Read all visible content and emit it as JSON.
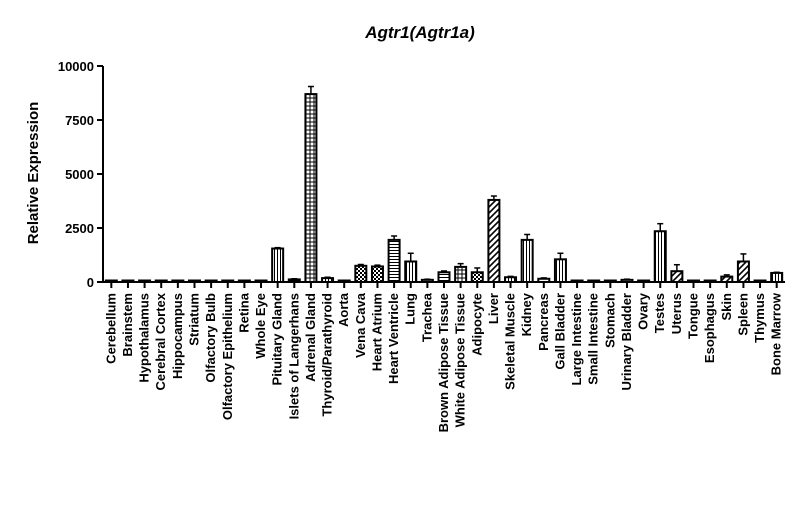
{
  "chart_data": {
    "type": "bar",
    "title": "Agtr1(Agtr1a)",
    "xlabel": "",
    "ylabel": "Relative Expression",
    "ylim": [
      0,
      10000
    ],
    "yticks": [
      0,
      2500,
      5000,
      7500,
      10000
    ],
    "ytick_labels": [
      "0",
      "2500",
      "5000",
      "7500",
      "10000"
    ],
    "grid": false,
    "legend": "none",
    "bar_color": "#000000",
    "categories": [
      "Cerebellum",
      "Brainstem",
      "Hypothalamus",
      "Cerebral Cortex",
      "Hippocampus",
      "Striatum",
      "Olfactory Bulb",
      "Olfactory Epithelium",
      "Retina",
      "Whole Eye",
      "Pituitary Gland",
      "Islets of Langerhans",
      "Adrenal Gland",
      "Thyroid/Parathyroid",
      "Aorta",
      "Vena Cava",
      "Heart Atrium",
      "Heart Ventricle",
      "Lung",
      "Trachea",
      "Brown Adipose Tissue",
      "White Adipose Tissue",
      "Adipocyte",
      "Liver",
      "Skeletal Muscle",
      "Kidney",
      "Pancreas",
      "Gall Bladder",
      "Large Intestine",
      "Small Intestine",
      "Stomach",
      "Urinary Bladder",
      "Ovary",
      "Testes",
      "Uterus",
      "Tongue",
      "Esophagus",
      "Skin",
      "Spleen",
      "Thymus",
      "Bone Marrow"
    ],
    "values": [
      10,
      20,
      60,
      15,
      10,
      10,
      25,
      20,
      10,
      40,
      1550,
      120,
      8700,
      180,
      40,
      750,
      720,
      1950,
      950,
      100,
      450,
      700,
      450,
      3800,
      220,
      1950,
      150,
      1050,
      60,
      40,
      50,
      100,
      20,
      2350,
      500,
      15,
      20,
      250,
      950,
      15,
      420
    ],
    "errors": [
      5,
      5,
      15,
      5,
      5,
      5,
      10,
      5,
      5,
      10,
      40,
      30,
      350,
      40,
      10,
      60,
      60,
      180,
      380,
      30,
      60,
      150,
      200,
      180,
      40,
      250,
      40,
      280,
      20,
      10,
      20,
      30,
      5,
      350,
      300,
      5,
      5,
      80,
      350,
      5,
      30
    ],
    "patterns": [
      "solid",
      "solid",
      "solid",
      "solid",
      "solid",
      "solid",
      "solid",
      "solid",
      "solid",
      "solid",
      "vlines",
      "hlines",
      "grid",
      "vlines",
      "solid",
      "checker",
      "checker",
      "hlines",
      "vlines",
      "solid",
      "hlines",
      "grid",
      "checker",
      "diag",
      "vlines",
      "vlines",
      "solid",
      "vlines",
      "solid",
      "solid",
      "solid",
      "solid",
      "solid",
      "vlines",
      "diag",
      "solid",
      "solid",
      "diag",
      "diag",
      "solid",
      "vlines"
    ]
  }
}
